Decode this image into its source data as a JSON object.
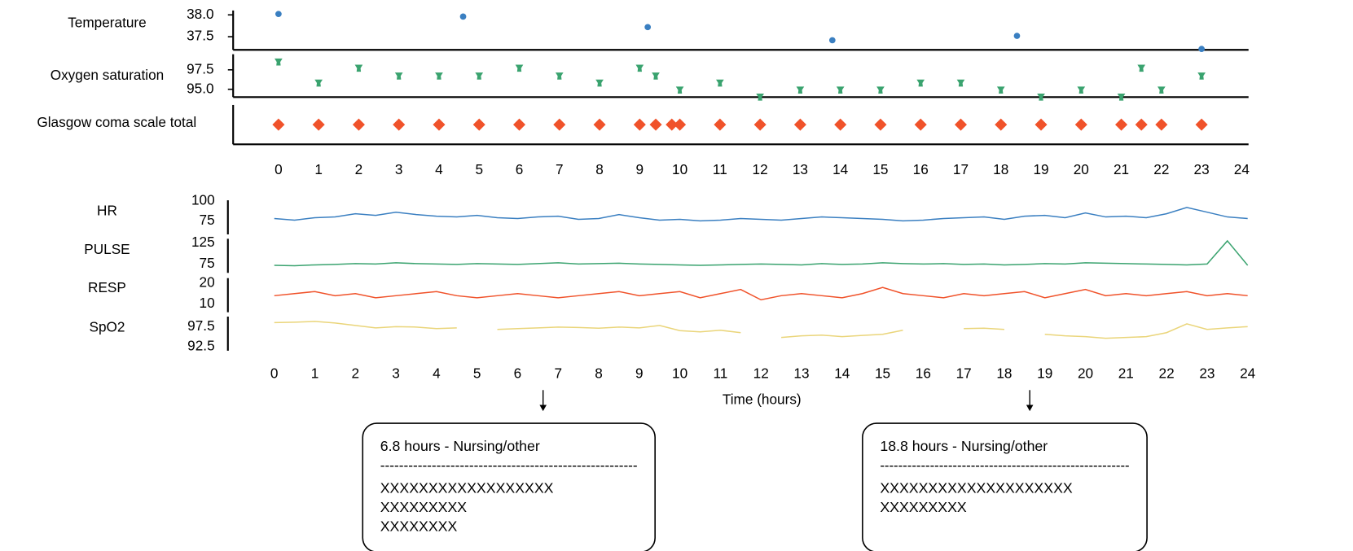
{
  "chart_data": [
    {
      "type": "scatter",
      "xlim": [
        -1.13,
        24.17
      ],
      "xticks": [
        0,
        1,
        2,
        3,
        4,
        5,
        6,
        7,
        8,
        9,
        10,
        11,
        12,
        13,
        14,
        15,
        16,
        17,
        18,
        19,
        20,
        21,
        22,
        23,
        24
      ],
      "series": [
        {
          "name": "Temperature",
          "color": "#3a7fc1",
          "marker": "circle",
          "x": [
            0,
            4.6,
            9.2,
            13.8,
            18.4,
            23
          ],
          "values": [
            38.02,
            37.96,
            37.72,
            37.42,
            37.52,
            37.22
          ],
          "ylim": [
            37.2,
            38.1
          ],
          "yticks": [
            {
              "value": 38,
              "label": "38.0"
            },
            37.5
          ]
        },
        {
          "name": "Oxygen saturation",
          "color": "#3aa36f",
          "marker": "tri",
          "x": [
            0,
            1,
            2,
            3,
            4,
            5,
            6,
            7,
            8,
            9,
            9.4,
            10,
            11,
            12,
            13,
            14,
            15,
            16,
            17,
            18,
            19,
            20,
            21,
            21.5,
            22,
            23
          ],
          "values": [
            98.5,
            95.8,
            97.7,
            96.7,
            96.7,
            96.7,
            97.7,
            96.7,
            95.8,
            97.7,
            96.7,
            94.9,
            95.8,
            94.0,
            94.9,
            94.9,
            94.9,
            95.8,
            95.8,
            94.9,
            94.0,
            94.9,
            94.0,
            97.7,
            94.9,
            96.7
          ],
          "ylim": [
            94,
            99.5
          ],
          "yticks": [
            97.5,
            {
              "value": 95,
              "label": "95.0"
            }
          ]
        },
        {
          "name": "Glasgow coma scale total",
          "color": "#f0522a",
          "marker": "diamond",
          "x": [
            0,
            1,
            2,
            3,
            4,
            5,
            6,
            7,
            8,
            9,
            9.4,
            9.8,
            10,
            11,
            12,
            13,
            14,
            15,
            16,
            17,
            18,
            19,
            20,
            21,
            21.5,
            22,
            23
          ],
          "values": [
            15,
            15,
            15,
            15,
            15,
            15,
            15,
            15,
            15,
            15,
            15,
            15,
            15,
            15,
            15,
            15,
            15,
            15,
            15,
            15,
            15,
            15,
            15,
            15,
            15,
            15,
            15
          ],
          "ylim": [
            14,
            16
          ],
          "yticks": []
        }
      ]
    },
    {
      "type": "line",
      "xlabel": "Time (hours)",
      "xlim": [
        0,
        24
      ],
      "xticks": [
        0,
        1,
        2,
        3,
        4,
        5,
        6,
        7,
        8,
        9,
        10,
        11,
        12,
        13,
        14,
        15,
        16,
        17,
        18,
        19,
        20,
        21,
        22,
        23,
        24
      ],
      "x": [
        0,
        0.5,
        1,
        1.5,
        2,
        2.5,
        3,
        3.5,
        4,
        4.5,
        5,
        5.5,
        6,
        6.5,
        7,
        7.5,
        8,
        8.5,
        9,
        9.5,
        10,
        10.5,
        11,
        11.5,
        12,
        12.5,
        13,
        13.5,
        14,
        14.5,
        15,
        15.5,
        16,
        16.5,
        17,
        17.5,
        18,
        18.5,
        19,
        19.5,
        20,
        20.5,
        21,
        21.5,
        22,
        22.5,
        23,
        23.5,
        24
      ],
      "series": [
        {
          "name": "HR",
          "color": "#3a7fc1",
          "ylim": [
            58,
            101
          ],
          "yticks": [
            100,
            75
          ],
          "values": [
            78,
            76,
            79,
            80,
            84,
            82,
            86,
            83,
            81,
            80,
            82,
            79,
            78,
            80,
            81,
            77,
            78,
            83,
            79,
            76,
            77,
            75,
            76,
            78,
            77,
            76,
            78,
            80,
            79,
            78,
            77,
            75,
            76,
            78,
            79,
            80,
            77,
            81,
            82,
            79,
            85,
            80,
            81,
            79,
            84,
            92,
            86,
            80,
            78
          ]
        },
        {
          "name": "PULSE",
          "color": "#3aa36f",
          "ylim": [
            54,
            135
          ],
          "yticks": [
            125,
            75
          ],
          "values": [
            72,
            71,
            73,
            74,
            76,
            75,
            78,
            76,
            75,
            74,
            76,
            75,
            74,
            76,
            78,
            75,
            76,
            77,
            75,
            74,
            73,
            72,
            73,
            74,
            75,
            74,
            73,
            76,
            74,
            75,
            78,
            76,
            75,
            76,
            74,
            75,
            73,
            74,
            76,
            75,
            78,
            77,
            76,
            75,
            74,
            73,
            75,
            130,
            72
          ]
        },
        {
          "name": "RESP",
          "color": "#f0522a",
          "ylim": [
            6,
            22.5
          ],
          "yticks": [
            20,
            10
          ],
          "values": [
            14,
            15,
            16,
            14,
            15,
            13,
            14,
            15,
            16,
            14,
            13,
            14,
            15,
            14,
            13,
            14,
            15,
            16,
            14,
            15,
            16,
            13,
            15,
            17,
            12,
            14,
            15,
            14,
            13,
            15,
            18,
            15,
            14,
            13,
            15,
            14,
            15,
            16,
            13,
            15,
            17,
            14,
            15,
            14,
            15,
            16,
            14,
            15,
            14
          ]
        },
        {
          "name": "SpO2",
          "color": "#ead57a",
          "ylim": [
            91.5,
            100
          ],
          "yticks": [
            97.5,
            92.5
          ],
          "values": [
            98.5,
            98.6,
            98.8,
            98.4,
            97.8,
            97.2,
            97.5,
            97.4,
            97.0,
            97.2,
            null,
            96.8,
            97.0,
            97.2,
            97.4,
            97.3,
            97.1,
            97.4,
            97.2,
            97.8,
            96.5,
            96.2,
            96.6,
            96.0,
            null,
            94.8,
            95.2,
            95.4,
            95.0,
            95.3,
            95.6,
            96.6,
            null,
            null,
            97.0,
            97.1,
            96.8,
            null,
            95.6,
            95.2,
            95.0,
            94.6,
            94.8,
            95.0,
            96.0,
            98.2,
            96.8,
            97.2,
            97.5
          ]
        }
      ],
      "annotations": [
        {
          "x": 6.8,
          "title": "6.8 hours - Nursing/other",
          "divider": "-------------------------------------------------------",
          "lines": [
            "XXXXXXXXXXXXXXXXXX",
            "XXXXXXXXX",
            "XXXXXXXX"
          ]
        },
        {
          "x": 18.8,
          "title": "18.8 hours - Nursing/other",
          "divider": "-------------------------------------------------------",
          "lines": [
            "XXXXXXXXXXXXXXXXXXXX",
            "XXXXXXXXX"
          ]
        }
      ]
    }
  ]
}
